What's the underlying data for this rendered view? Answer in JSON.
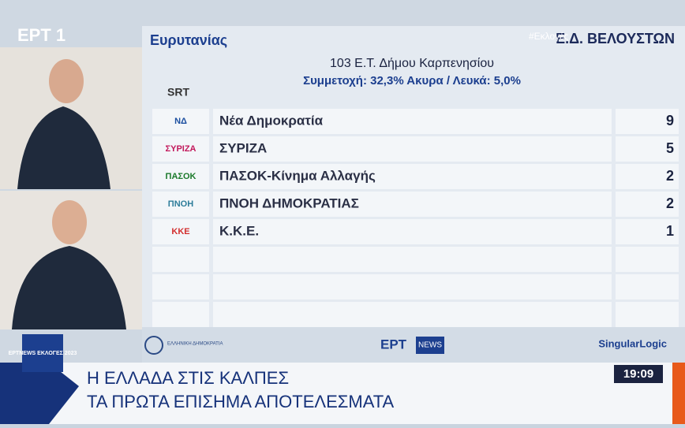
{
  "channel_logo": "ΕΡΤ 1",
  "hashtag": "#Εκλογές",
  "panel": {
    "region": "Ευρυτανίας",
    "district": "Ε.Δ. ΒΕΛΟΥΣΤΩΝ",
    "station": "103 Ε.Τ. Δήμου Καρπενησίου",
    "turnout": "Συμμετοχή: 32,3%  Ακυρα / Λευκά: 5,0%",
    "source_logo": "SRT",
    "rows": [
      {
        "logo": "ΝΔ",
        "party": "Νέα Δημοκρατία",
        "seats": 9
      },
      {
        "logo": "ΣΥΡΙΖΑ",
        "party": "ΣΥΡΙΖΑ",
        "seats": 5
      },
      {
        "logo": "ΠΑΣΟΚ",
        "party": "ΠΑΣΟΚ-Κίνημα Αλλαγής",
        "seats": 2
      },
      {
        "logo": "ΠΝΟΗ",
        "party": "ΠΝΟΗ ΔΗΜΟΚΡΑΤΙΑΣ",
        "seats": 2
      },
      {
        "logo": "ΚΚΕ",
        "party": "Κ.Κ.Ε.",
        "seats": 1
      }
    ]
  },
  "footer": {
    "gov": "ΕΛΛΗΝΙΚΗ ΔΗΜΟΚΡΑΤΙΑ",
    "ert": "ΕΡΤ",
    "news": "NEWS",
    "partner": "SingularLogic"
  },
  "ticker": {
    "badge": "ΕΡΤNEWS ΕΚΛΟΓΕΣ 2023",
    "line1": "Η ΕΛΛΑΔΑ ΣΤΙΣ ΚΑΛΠΕΣ",
    "line2": "ΤΑ ΠΡΩΤΑ ΕΠΙΣΗΜΑ ΑΠΟΤΕΛΕΣΜΑΤΑ",
    "time": "19:09"
  }
}
